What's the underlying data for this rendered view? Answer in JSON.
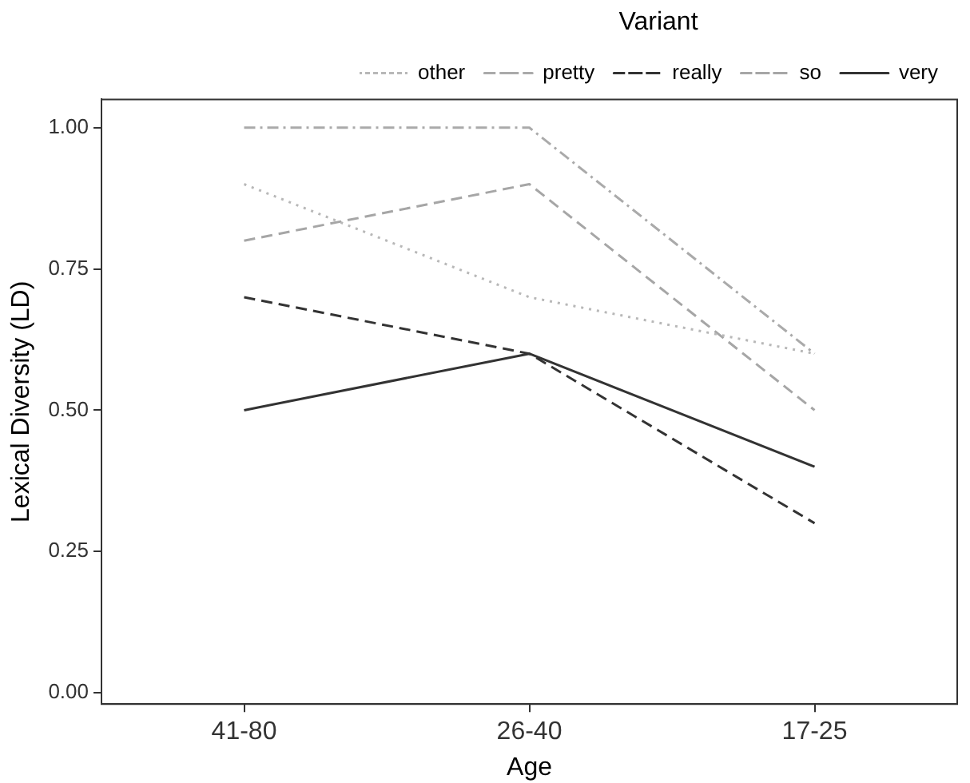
{
  "chart_data": {
    "type": "line",
    "xlabel": "Age",
    "ylabel": "Lexical Diversity (LD)",
    "legend_title": "Variant",
    "legend": "top",
    "grid": false,
    "marker": "none",
    "categories": [
      "41-80",
      "26-40",
      "17-25"
    ],
    "ylim": [
      -0.02,
      1.05
    ],
    "yticks": [
      {
        "value": 0,
        "label": "0.00"
      },
      {
        "value": 0.25,
        "label": "0.25"
      },
      {
        "value": 0.5,
        "label": "0.50"
      },
      {
        "value": 0.75,
        "label": "0.75"
      },
      {
        "value": 1,
        "label": "1.00"
      }
    ],
    "series": [
      {
        "name": "other",
        "color": "#b8b8b8",
        "line_style": "dotted",
        "values": [
          0.9,
          0.7,
          0.6
        ]
      },
      {
        "name": "pretty",
        "color": "#aaaaaa",
        "line_style": "dashdot",
        "values": [
          1.0,
          1.0,
          0.6
        ]
      },
      {
        "name": "really",
        "color": "#333333",
        "line_style": "dashed",
        "values": [
          0.7,
          0.6,
          0.3
        ]
      },
      {
        "name": "so",
        "color": "#a6a6a6",
        "line_style": "dashed",
        "values": [
          0.8,
          0.9,
          0.5
        ]
      },
      {
        "name": "very",
        "color": "#333333",
        "line_style": "solid",
        "values": [
          0.5,
          0.6,
          0.4
        ]
      }
    ]
  }
}
